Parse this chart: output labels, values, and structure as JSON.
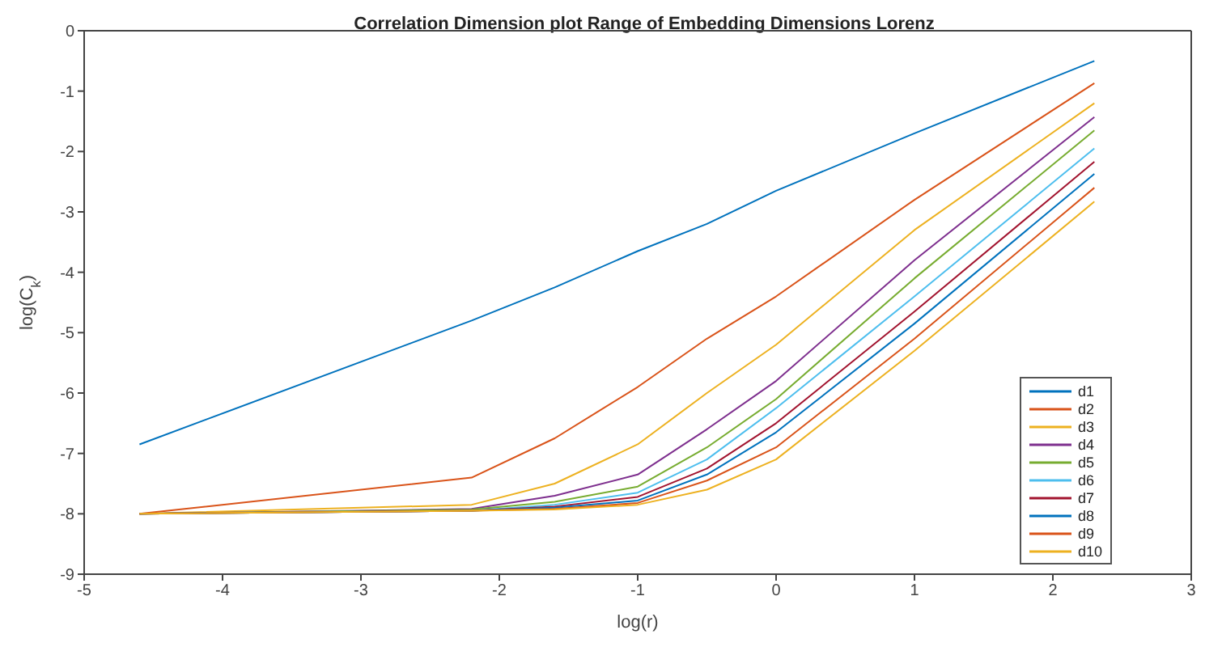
{
  "chart_data": {
    "type": "line",
    "title": "Correlation Dimension plot Range of Embedding Dimensions Lorenz",
    "xlabel": "log(r)",
    "ylabel": "log(C$_{k}$)",
    "x": [
      -4.6,
      -2.2,
      -1.6,
      -1,
      -0.5,
      0,
      1,
      2.3
    ],
    "xlim": [
      -5,
      3
    ],
    "xticks": [
      -5,
      -4,
      -3,
      -2,
      -1,
      0,
      1,
      2,
      3
    ],
    "ylim": [
      -9,
      0
    ],
    "yticks": [
      -9,
      -8,
      -7,
      -6,
      -5,
      -4,
      -3,
      -2,
      -1,
      0
    ],
    "grid": false,
    "legend": "right",
    "marker": "none",
    "line_style": "solid",
    "series": [
      {
        "name": "d1",
        "color": "#0072bd",
        "values": [
          -6.85,
          -4.8,
          -4.25,
          -3.65,
          -3.2,
          -2.65,
          -1.7,
          -0.5
        ]
      },
      {
        "name": "d2",
        "color": "#d95319",
        "values": [
          -8,
          -7.4,
          -6.75,
          -5.9,
          -5.1,
          -4.4,
          -2.8,
          -0.87
        ]
      },
      {
        "name": "d3",
        "color": "#edb120",
        "values": [
          -8,
          -7.85,
          -7.5,
          -6.85,
          -6.0,
          -5.2,
          -3.3,
          -1.2
        ]
      },
      {
        "name": "d4",
        "color": "#7e2f8e",
        "values": [
          -8,
          -7.92,
          -7.7,
          -7.35,
          -6.6,
          -5.8,
          -3.8,
          -1.43
        ]
      },
      {
        "name": "d5",
        "color": "#77ac30",
        "values": [
          -8,
          -7.93,
          -7.8,
          -7.55,
          -6.9,
          -6.1,
          -4.1,
          -1.65
        ]
      },
      {
        "name": "d6",
        "color": "#4dbeee",
        "values": [
          -8,
          -7.95,
          -7.85,
          -7.65,
          -7.1,
          -6.25,
          -4.4,
          -1.95
        ]
      },
      {
        "name": "d7",
        "color": "#a2142f",
        "values": [
          -8,
          -7.95,
          -7.88,
          -7.72,
          -7.25,
          -6.5,
          -4.65,
          -2.17
        ]
      },
      {
        "name": "d8",
        "color": "#0072bd",
        "values": [
          -8,
          -7.95,
          -7.9,
          -7.78,
          -7.35,
          -6.65,
          -4.85,
          -2.37
        ]
      },
      {
        "name": "d9",
        "color": "#d95319",
        "values": [
          -8,
          -7.95,
          -7.92,
          -7.82,
          -7.45,
          -6.9,
          -5.1,
          -2.6
        ]
      },
      {
        "name": "d10",
        "color": "#edb120",
        "values": [
          -8,
          -7.95,
          -7.93,
          -7.85,
          -7.6,
          -7.1,
          -5.3,
          -2.83
        ]
      }
    ]
  }
}
